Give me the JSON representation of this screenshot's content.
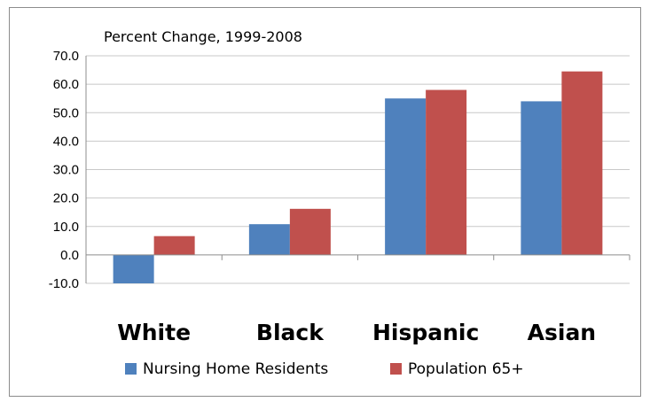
{
  "chart_data": {
    "type": "bar",
    "title": "Percent Change, 1999-2008",
    "categories": [
      "White",
      "Black",
      "Hispanic",
      "Asian"
    ],
    "series": [
      {
        "name": "Nursing Home Residents",
        "color": "#4f81bd",
        "values": [
          -10.0,
          10.8,
          55.0,
          54.0
        ]
      },
      {
        "name": "Population 65+",
        "color": "#c0504d",
        "values": [
          6.6,
          16.2,
          58.0,
          64.5
        ]
      }
    ],
    "ylim": [
      -10,
      70
    ],
    "ytick_step": 10,
    "grid": true,
    "legend": "bottom"
  }
}
